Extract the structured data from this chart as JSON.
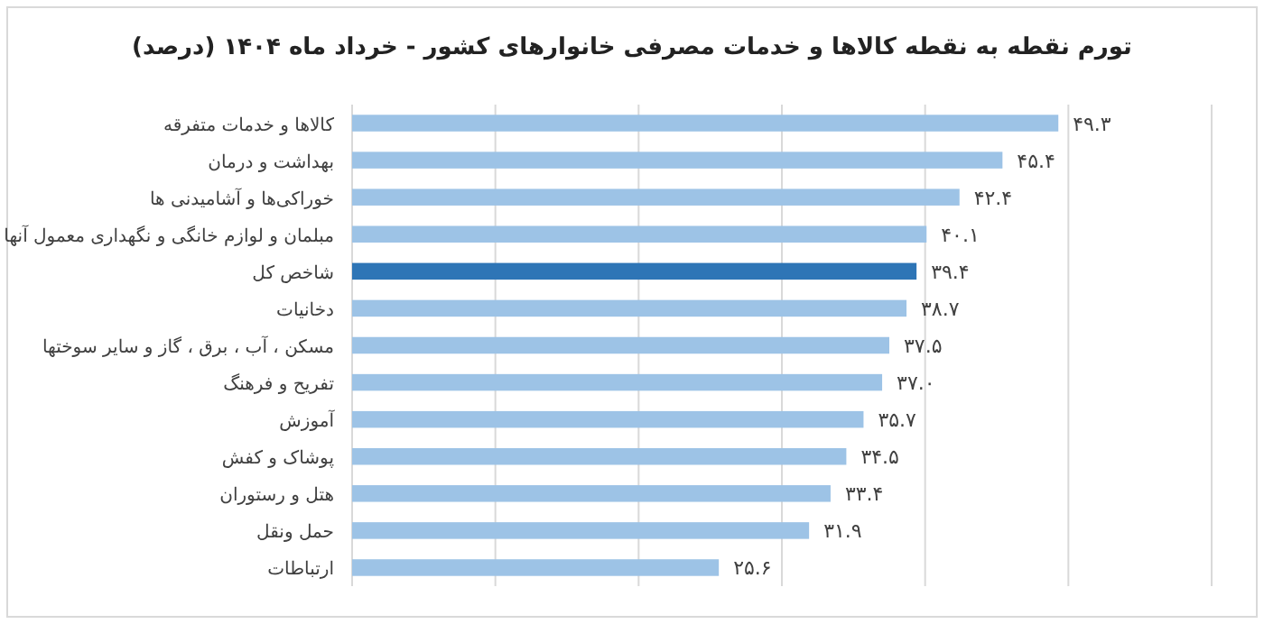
{
  "chart_data": {
    "type": "bar",
    "orientation": "horizontal",
    "title": "تورم نقطه به نقطه کالاها و خدمات مصرفی خانوارهای کشور - خرداد ماه ۱۴۰۴ (درصد)",
    "categories": [
      "کالاها و خدمات متفرقه",
      "بهداشت و درمان",
      "خوراکی‌ها و آشامیدنی ها",
      "مبلمان و لوازم خانگی و نگهداری معمول آنها",
      "شاخص کل",
      "دخانیات",
      "مسکن ، آب ، برق ، گاز و سایر سوختها",
      "تفریح و فرهنگ",
      "آموزش",
      "پوشاک و کفش",
      "هتل و رستوران",
      "حمل ونقل",
      "ارتباطات"
    ],
    "values": [
      49.3,
      45.4,
      42.4,
      40.1,
      39.4,
      38.7,
      37.5,
      37.0,
      35.7,
      34.5,
      33.4,
      31.9,
      25.6
    ],
    "value_labels": [
      "۴۹.۳",
      "۴۵.۴",
      "۴۲.۴",
      "۴۰.۱",
      "۳۹.۴",
      "۳۸.۷",
      "۳۷.۵",
      "۳۷.۰",
      "۳۵.۷",
      "۳۴.۵",
      "۳۳.۴",
      "۳۱.۹",
      "۲۵.۶"
    ],
    "colors": [
      "#9dc3e6",
      "#9dc3e6",
      "#9dc3e6",
      "#9dc3e6",
      "#2e75b6",
      "#9dc3e6",
      "#9dc3e6",
      "#9dc3e6",
      "#9dc3e6",
      "#9dc3e6",
      "#9dc3e6",
      "#9dc3e6",
      "#9dc3e6"
    ],
    "xlim": [
      0,
      60
    ],
    "xticks": [
      {
        "value": 0,
        "label": null
      },
      {
        "value": 10,
        "label": null
      },
      {
        "value": 20,
        "label": null
      },
      {
        "value": 30,
        "label": null
      },
      {
        "value": 40,
        "label": null
      },
      {
        "value": 50,
        "label": null
      },
      {
        "value": 60,
        "label": null
      }
    ],
    "grid": "x"
  }
}
